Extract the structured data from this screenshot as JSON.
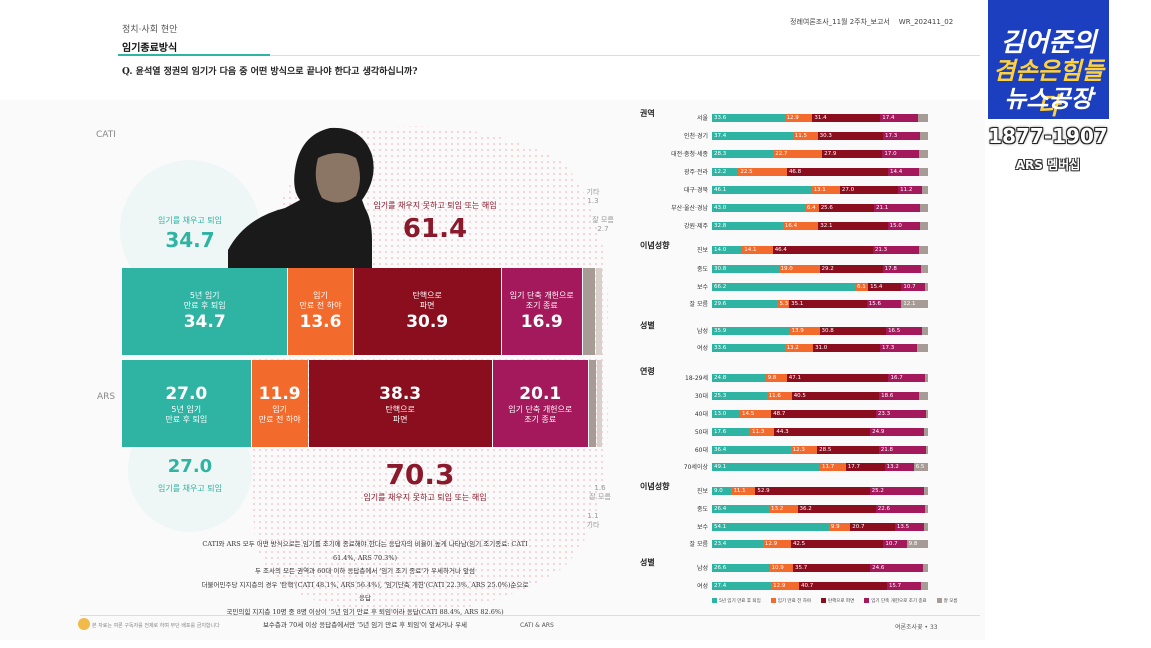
{
  "header": {
    "category": "정치·사회 현안",
    "title": "임기종료방식",
    "right_title": "정례여론조사_11월 2주차_보고서",
    "report_id": "WR_202411_02",
    "question": "Q. 윤석열 정권의 임기가 다음 중 어떤 방식으로 끝나야 한다고 생각하십니까?"
  },
  "colors": {
    "teal": "#2fb3a3",
    "orange": "#f26a2c",
    "darkred": "#8a0e1e",
    "magenta": "#a3195b",
    "grey": "#a79b95"
  },
  "chart_data": [
    {
      "type": "bar",
      "title": "임기종료방식 (CATI vs ARS)",
      "categories": [
        "CATI",
        "ARS"
      ],
      "series": [
        {
          "name": "5년 임기 만료 후 퇴임",
          "values": [
            34.7,
            27.0
          ]
        },
        {
          "name": "임기 만료 전 하야",
          "values": [
            13.6,
            11.9
          ]
        },
        {
          "name": "탄핵으로 파면",
          "values": [
            30.9,
            38.3
          ]
        },
        {
          "name": "임기 단축 개헌으로 조기 종료",
          "values": [
            16.9,
            20.1
          ]
        },
        {
          "name": "잘 모름",
          "values": [
            2.7,
            1.6
          ]
        },
        {
          "name": "기타",
          "values": [
            1.3,
            1.1
          ]
        }
      ],
      "aggregates": {
        "keep_term_label": "임기를 채우고 퇴임",
        "cut_term_label": "임기를 채우지 못하고 퇴임 또는 해임",
        "cati_keep": "34.7",
        "cati_cut": "61.4",
        "ars_keep": "27.0",
        "ars_cut": "70.3"
      },
      "segments": {
        "cati": [
          {
            "label": "5년 임기\n만료 후 퇴임",
            "value": "34.7"
          },
          {
            "label": "임기\n만료 전 하야",
            "value": "13.6"
          },
          {
            "label": "탄핵으로\n파면",
            "value": "30.9"
          },
          {
            "label": "임기 단축 개헌으로\n조기 종료",
            "value": "16.9"
          }
        ],
        "ars": [
          {
            "label": "5년 임기\n만료 후 퇴임",
            "value": "27.0"
          },
          {
            "label": "임기\n만료 전 하야",
            "value": "11.9"
          },
          {
            "label": "탄핵으로\n파면",
            "value": "38.3"
          },
          {
            "label": "임기 단축 개헌으로\n조기 종료",
            "value": "20.1"
          }
        ]
      },
      "method_labels": {
        "cati": "CATI",
        "ars": "ARS"
      },
      "side_notes": {
        "cati_etc": "기타\n1.3",
        "cati_dk": "잘 모름\n2.7",
        "ars_dk": "1.6\n잘 모름",
        "ars_etc": "1.1\n기타"
      }
    },
    {
      "type": "bar",
      "title": "응답자 특성별 임기종료방식",
      "legend": [
        "5년 임기 만료 후 퇴임",
        "임기 만료 전 하야",
        "탄핵으로 파면",
        "임기 단축 개헌으로 조기 종료",
        "잘 모름"
      ],
      "groups": [
        {
          "name": "권역",
          "rows": [
            {
              "label": "서울",
              "values": [
                33.6,
                12.9,
                31.4,
                17.4,
                4.7
              ],
              "labels": [
                "33.6",
                "12.9",
                "31.4",
                "17.4",
                ""
              ]
            },
            {
              "label": "인천·경기",
              "values": [
                37.4,
                11.5,
                30.3,
                17.3,
                3.5
              ],
              "labels": [
                "37.4",
                "11.5",
                "30.3",
                "17.3",
                ""
              ]
            },
            {
              "label": "대전·충청·세종",
              "values": [
                28.3,
                22.7,
                27.9,
                17.0,
                4.1
              ],
              "labels": [
                "28.3",
                "22.7",
                "27.9",
                "17.0",
                ""
              ]
            },
            {
              "label": "광주·전라",
              "values": [
                12.2,
                22.5,
                46.8,
                14.4,
                4.1
              ],
              "labels": [
                "12.2",
                "22.5",
                "46.8",
                "14.4",
                ""
              ]
            },
            {
              "label": "대구·경북",
              "values": [
                46.1,
                13.1,
                27.0,
                11.2,
                2.6
              ],
              "labels": [
                "46.1",
                "13.1",
                "27.0",
                "11.2",
                ""
              ]
            },
            {
              "label": "부산·울산·경남",
              "values": [
                43.0,
                6.4,
                25.6,
                21.1,
                3.9
              ],
              "labels": [
                "43.0",
                "6.4",
                "25.6",
                "21.1",
                ""
              ]
            },
            {
              "label": "강원·제주",
              "values": [
                32.8,
                16.4,
                32.1,
                15.0,
                3.7
              ],
              "labels": [
                "32.8",
                "16.4",
                "32.1",
                "15.0",
                ""
              ]
            }
          ]
        },
        {
          "name": "이념성향",
          "rows": [
            {
              "label": "진보",
              "values": [
                14.0,
                14.1,
                46.4,
                21.3,
                4.2
              ],
              "labels": [
                "14.0",
                "14.1",
                "46.4",
                "21.3",
                ""
              ]
            },
            {
              "label": "중도",
              "values": [
                30.8,
                19.0,
                29.2,
                17.8,
                3.2
              ],
              "labels": [
                "30.8",
                "19.0",
                "29.2",
                "17.8",
                ""
              ]
            },
            {
              "label": "보수",
              "values": [
                66.2,
                6.1,
                15.4,
                10.7,
                1.6
              ],
              "labels": [
                "66.2",
                "6.1",
                "15.4",
                "10.7",
                ""
              ]
            },
            {
              "label": "잘 모름",
              "values": [
                29.6,
                5.3,
                35.1,
                15.6,
                12.1
              ],
              "labels": [
                "29.6",
                "5.3",
                "35.1",
                "15.6",
                "12.1"
              ]
            }
          ]
        },
        {
          "name": "성별",
          "rows": [
            {
              "label": "남성",
              "values": [
                35.9,
                13.9,
                30.8,
                16.5,
                2.9
              ],
              "labels": [
                "35.9",
                "13.9",
                "30.8",
                "16.5",
                ""
              ]
            },
            {
              "label": "여성",
              "values": [
                33.6,
                13.2,
                31.0,
                17.3,
                4.9
              ],
              "labels": [
                "33.6",
                "13.2",
                "31.0",
                "17.3",
                ""
              ]
            }
          ]
        },
        {
          "name": "연령",
          "rows": [
            {
              "label": "18-29세",
              "values": [
                24.8,
                9.8,
                47.1,
                16.7,
                1.6
              ],
              "labels": [
                "24.8",
                "9.8",
                "47.1",
                "16.7",
                ""
              ]
            },
            {
              "label": "30대",
              "values": [
                25.3,
                11.6,
                40.5,
                18.6,
                4.0
              ],
              "labels": [
                "25.3",
                "11.6",
                "40.5",
                "18.6",
                ""
              ]
            },
            {
              "label": "40대",
              "values": [
                13.0,
                14.5,
                48.7,
                23.3,
                0.5
              ],
              "labels": [
                "13.0",
                "14.5",
                "48.7",
                "23.3",
                ""
              ]
            },
            {
              "label": "50대",
              "values": [
                17.6,
                11.3,
                44.3,
                24.9,
                1.9
              ],
              "labels": [
                "17.6",
                "11.3",
                "44.3",
                "24.9",
                ""
              ]
            },
            {
              "label": "60대",
              "values": [
                36.4,
                12.3,
                28.5,
                21.8,
                1.0
              ],
              "labels": [
                "36.4",
                "12.3",
                "28.5",
                "21.8",
                ""
              ]
            },
            {
              "label": "70세이상",
              "values": [
                49.1,
                11.7,
                17.7,
                13.2,
                6.5
              ],
              "labels": [
                "49.1",
                "11.7",
                "17.7",
                "13.2",
                "6.5"
              ]
            }
          ]
        },
        {
          "name": "이념성향",
          "rows": [
            {
              "label": "진보",
              "values": [
                9.0,
                11.1,
                52.9,
                25.2,
                1.8
              ],
              "labels": [
                "9.0",
                "11.1",
                "52.9",
                "25.2",
                ""
              ]
            },
            {
              "label": "중도",
              "values": [
                26.4,
                13.2,
                36.2,
                22.6,
                1.6
              ],
              "labels": [
                "26.4",
                "13.2",
                "36.2",
                "22.6",
                ""
              ]
            },
            {
              "label": "보수",
              "values": [
                54.1,
                9.9,
                20.7,
                13.5,
                1.8
              ],
              "labels": [
                "54.1",
                "9.9",
                "20.7",
                "13.5",
                ""
              ]
            },
            {
              "label": "잘 모름",
              "values": [
                23.4,
                12.9,
                42.5,
                10.7,
                9.8
              ],
              "labels": [
                "23.4",
                "12.9",
                "42.5",
                "10.7",
                "9.8"
              ]
            }
          ]
        },
        {
          "name": "성별",
          "rows": [
            {
              "label": "남성",
              "values": [
                26.6,
                10.9,
                35.7,
                24.6,
                2.2
              ],
              "labels": [
                "26.6",
                "10.9",
                "35.7",
                "24.6",
                ""
              ]
            },
            {
              "label": "여성",
              "values": [
                27.4,
                12.9,
                40.7,
                15.7,
                3.3
              ],
              "labels": [
                "27.4",
                "12.9",
                "40.7",
                "15.7",
                ""
              ]
            }
          ]
        }
      ]
    }
  ],
  "summary_lines": [
    "CATI와 ARS 모두 어떤 방식으로든 임기를 조기에 종료해야 한다는 응답자의 비율이 높게 나타남(임기 조기종료: CATI 61.4%, ARS 70.3%)",
    "두 조사의 모든 권역과 60대 이하 응답층에서 '임기 조기 종료'가 우세하거나 앞섬",
    "더불어민주당 지지층의 경우 '탄핵'(CATI 48.1%, ARS 56.4%), '임기단축 개헌'(CATI 22.3%, ARS 25.0%)순으로 응답",
    "국민의힘 지지층 10명 중 8명 이상이 '5년 임기 만료 후 퇴임'이라 응답(CATI 88.4%, ARS 82.6%)",
    "보수층과 70세 이상 응답층에서만 '5년 임기 만료 후 퇴임'이 앞서거나 우세"
  ],
  "footer": {
    "left": "본 자료는 여론 구독자를 전제로 하며 무단 배포를 금지합니다",
    "middle": "CATI & ARS",
    "right": "여론조사꽃 • 33"
  },
  "overlay": {
    "logo_line1": "김어준의",
    "logo_line2": "겸손은힘들다",
    "logo_line3": "뉴스공장",
    "phone": "1877-1907",
    "ars_member": "ARS 멤버십"
  }
}
